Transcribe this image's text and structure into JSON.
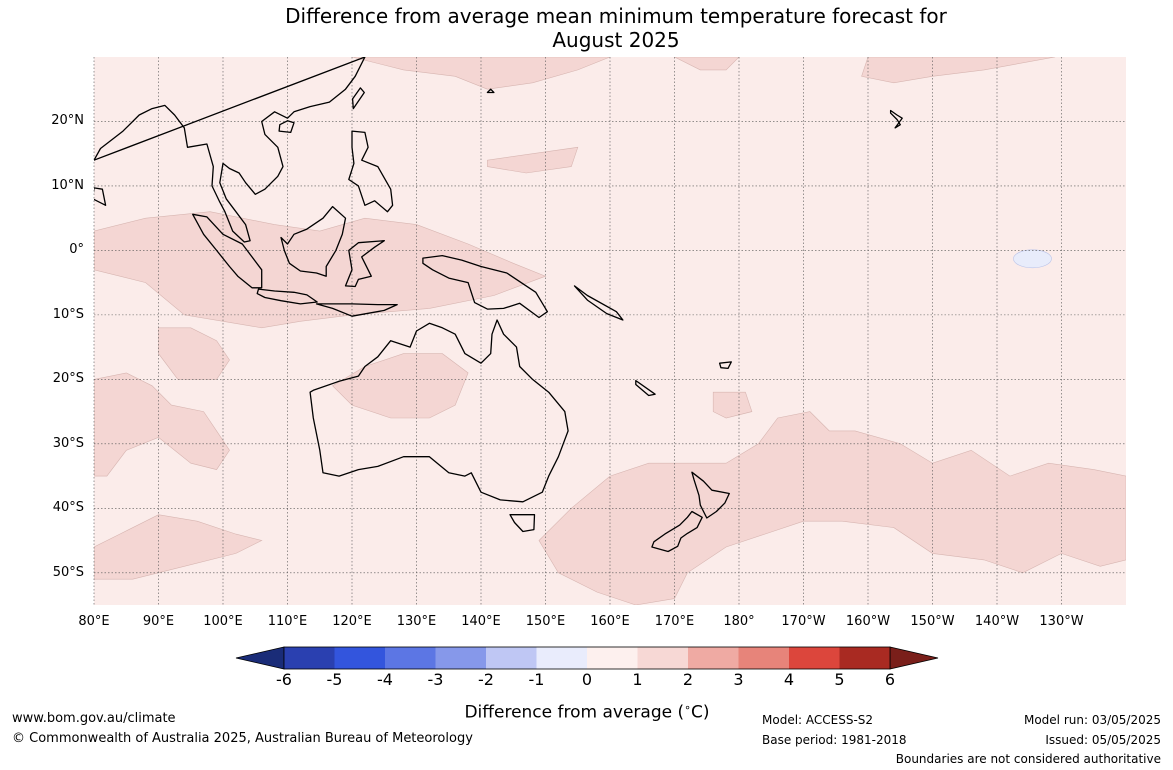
{
  "title_line1": "Difference from average mean minimum temperature forecast for",
  "title_line2": "August 2025",
  "map": {
    "extent": {
      "lon_min": 80,
      "lon_max": 240,
      "lat_min": -55,
      "lat_max": 30
    },
    "ocean_color": "#fbecea",
    "anomaly_1_2_color": "#f4d6d3",
    "cool_patch_color": "#e8ecfb",
    "gridline_color": "#555555",
    "lat_ticks": [
      {
        "lat": 20,
        "label": "20°N"
      },
      {
        "lat": 10,
        "label": "10°N"
      },
      {
        "lat": 0,
        "label": "0°"
      },
      {
        "lat": -10,
        "label": "10°S"
      },
      {
        "lat": -20,
        "label": "20°S"
      },
      {
        "lat": -30,
        "label": "30°S"
      },
      {
        "lat": -40,
        "label": "40°S"
      },
      {
        "lat": -50,
        "label": "50°S"
      }
    ],
    "lon_ticks": [
      {
        "lon": 80,
        "label": "80°E"
      },
      {
        "lon": 90,
        "label": "90°E"
      },
      {
        "lon": 100,
        "label": "100°E"
      },
      {
        "lon": 110,
        "label": "110°E"
      },
      {
        "lon": 120,
        "label": "120°E"
      },
      {
        "lon": 130,
        "label": "130°E"
      },
      {
        "lon": 140,
        "label": "140°E"
      },
      {
        "lon": 150,
        "label": "150°E"
      },
      {
        "lon": 160,
        "label": "160°E"
      },
      {
        "lon": 170,
        "label": "170°E"
      },
      {
        "lon": 180,
        "label": "180°"
      },
      {
        "lon": 190,
        "label": "170°W"
      },
      {
        "lon": 200,
        "label": "160°W"
      },
      {
        "lon": 210,
        "label": "150°W"
      },
      {
        "lon": 220,
        "label": "140°W"
      },
      {
        "lon": 230,
        "label": "130°W"
      }
    ]
  },
  "colorbar": {
    "title": "Difference from average (",
    "title_unit": "∘",
    "title_suffix": "C)",
    "tick_labels": [
      "-6",
      "-5",
      "-4",
      "-3",
      "-2",
      "-1",
      "0",
      "1",
      "2",
      "3",
      "4",
      "5",
      "6"
    ],
    "under_color": "#1a2c78",
    "over_color": "#7a1f1a",
    "bins": [
      {
        "from": -6,
        "to": -5,
        "color": "#2a40b0"
      },
      {
        "from": -5,
        "to": -4,
        "color": "#3355dd"
      },
      {
        "from": -4,
        "to": -3,
        "color": "#5c76e4"
      },
      {
        "from": -3,
        "to": -2,
        "color": "#8698ea"
      },
      {
        "from": -2,
        "to": -1,
        "color": "#bfc7f4"
      },
      {
        "from": -1,
        "to": 0,
        "color": "#e9ecfc"
      },
      {
        "from": 0,
        "to": 1,
        "color": "#fdf0ee"
      },
      {
        "from": 1,
        "to": 2,
        "color": "#f7d8d5"
      },
      {
        "from": 2,
        "to": 3,
        "color": "#efaaa3"
      },
      {
        "from": 3,
        "to": 4,
        "color": "#e7847a"
      },
      {
        "from": 4,
        "to": 5,
        "color": "#dc463c"
      },
      {
        "from": 5,
        "to": 6,
        "color": "#a92a22"
      }
    ]
  },
  "footer": {
    "website": "www.bom.gov.au/climate",
    "copyright": "© Commonwealth of Australia 2025, Australian Bureau of Meteorology",
    "model": "Model: ACCESS-S2",
    "base_period": "Base period: 1981-2018",
    "model_run": "Model run: 03/05/2025",
    "issued": "Issued: 05/05/2025",
    "disclaimer": "Boundaries are not considered authoritative"
  }
}
